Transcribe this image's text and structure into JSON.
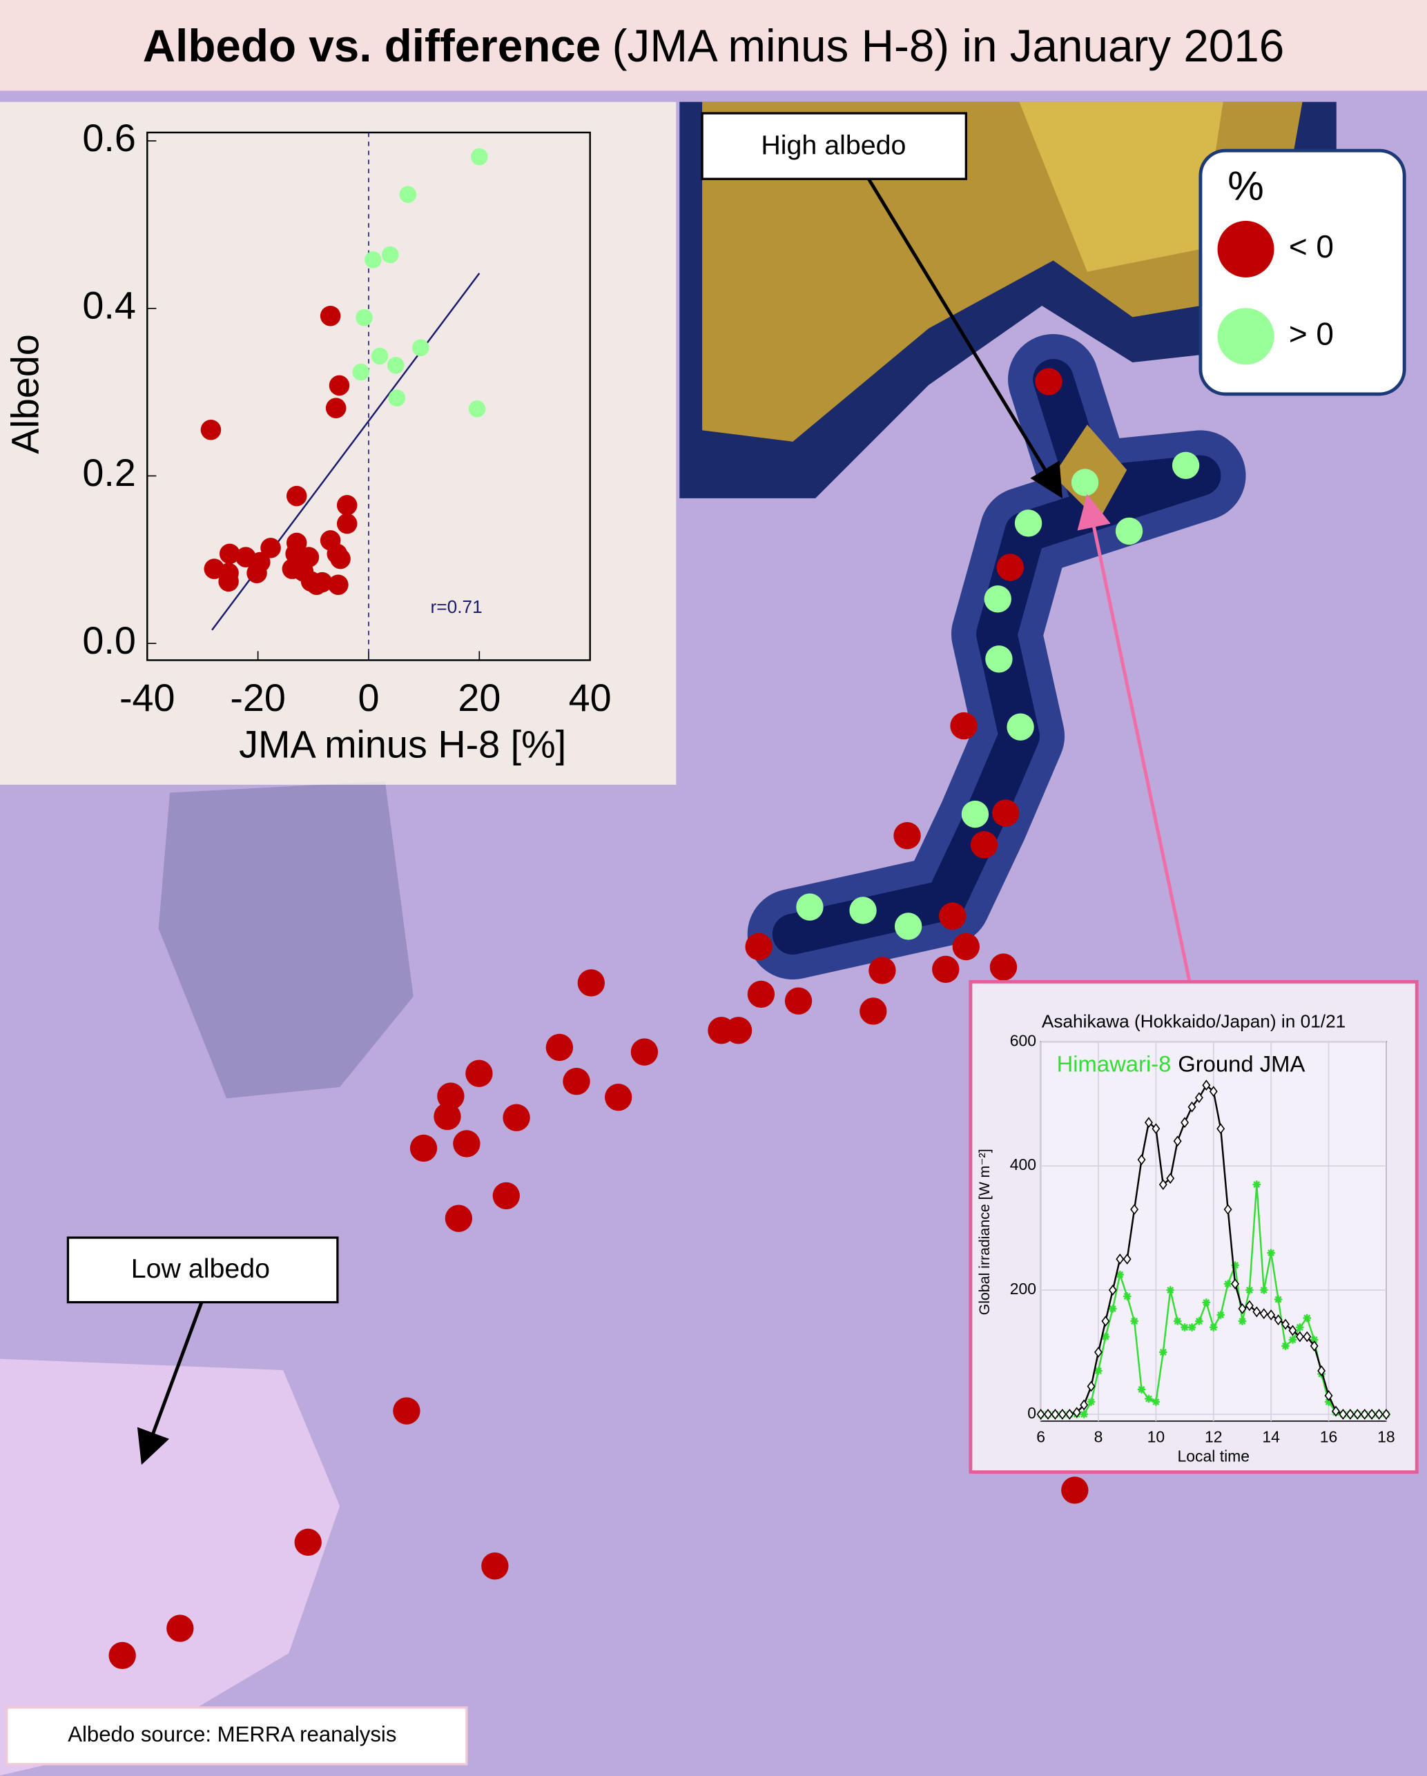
{
  "header": {
    "title_bold": "Albedo vs. difference",
    "title_rest": "(JMA minus H-8) in January 2016"
  },
  "annotations": {
    "high": "High albedo",
    "low": "Low albedo"
  },
  "legend": {
    "title": "%",
    "items": [
      {
        "label": "< 0",
        "color": "#c00000"
      },
      {
        "label": "> 0",
        "color": "#99ff99"
      }
    ]
  },
  "source": "Albedo  source: MERRA reanalysis",
  "chart_data": [
    {
      "type": "scatter",
      "xlabel": "JMA minus H-8 [%]",
      "ylabel": "Albedo",
      "xlim": [
        -40,
        40
      ],
      "ylim": [
        -0.02,
        0.61
      ],
      "xticks": [
        -40,
        -20,
        0,
        20,
        40
      ],
      "yticks": [
        {
          "value": 0,
          "label": "0.0"
        },
        0.2,
        0.4,
        0.6
      ],
      "vline": 0,
      "series": [
        {
          "color": "#c00000",
          "x": [
            -28.5,
            -6.9,
            -5.3,
            -5.9,
            -13.0,
            -3.9,
            -3.9,
            -27.9,
            -25.3,
            -25.1,
            -25.3,
            -22.2,
            -20.2,
            -19.6,
            -17.7,
            -13.0,
            -12.4,
            -13.2,
            -10.8,
            -13.8,
            -11.8,
            -9.4,
            -8.4,
            -6.9,
            -5.7,
            -5.1,
            -5.5,
            -10.4
          ],
          "values": [
            0.255,
            0.391,
            0.308,
            0.281,
            0.176,
            0.165,
            0.143,
            0.089,
            0.084,
            0.107,
            0.074,
            0.103,
            0.084,
            0.097,
            0.114,
            0.12,
            0.1,
            0.107,
            0.103,
            0.089,
            0.086,
            0.07,
            0.073,
            0.123,
            0.107,
            0.101,
            0.07,
            0.074
          ]
        },
        {
          "color": "#99ff99",
          "x": [
            20.0,
            7.1,
            0.8,
            3.9,
            -0.8,
            2.0,
            4.9,
            9.4,
            -1.4,
            5.1,
            19.6
          ],
          "values": [
            0.581,
            0.536,
            0.458,
            0.464,
            0.389,
            0.343,
            0.332,
            0.353,
            0.324,
            0.293,
            0.28
          ]
        }
      ],
      "fit": {
        "color": "#1a1a6e",
        "x": [
          -28.3,
          20.0
        ],
        "values": [
          0.016,
          0.442
        ]
      },
      "annotation": "r=0.71"
    },
    {
      "type": "line",
      "title": "Asahikawa (Hokkaido/Japan) in 01/21",
      "xlabel": "Local time",
      "ylabel": "Global irradiance [W m⁻²]",
      "xlim": [
        6,
        18
      ],
      "ylim": [
        -11,
        600
      ],
      "xticks": [
        6,
        8,
        10,
        12,
        14,
        16,
        18
      ],
      "yticks": [
        0,
        200,
        400,
        600
      ],
      "x": [
        6,
        6.25,
        6.5,
        6.75,
        7,
        7.25,
        7.5,
        7.75,
        8,
        8.25,
        8.5,
        8.75,
        9,
        9.25,
        9.5,
        9.75,
        10,
        10.25,
        10.5,
        10.75,
        11,
        11.25,
        11.5,
        11.75,
        12,
        12.25,
        12.5,
        12.75,
        13,
        13.25,
        13.5,
        13.75,
        14,
        14.25,
        14.5,
        14.75,
        15,
        15.25,
        15.5,
        15.75,
        16,
        16.25,
        16.5,
        16.75,
        17,
        17.25,
        17.5,
        17.75,
        18
      ],
      "series": [
        {
          "name": "Himawari-8",
          "color": "#33dd33",
          "values": [
            0,
            0,
            0,
            0,
            0,
            0,
            0,
            20,
            70,
            125,
            170,
            225,
            190,
            150,
            40,
            25,
            20,
            100,
            200,
            150,
            140,
            140,
            150,
            180,
            140,
            160,
            210,
            240,
            150,
            200,
            370,
            200,
            260,
            185,
            110,
            120,
            140,
            155,
            120,
            65,
            20,
            3,
            0,
            0,
            0,
            0,
            0,
            0,
            0
          ]
        },
        {
          "name": "Ground JMA",
          "color": "#000000",
          "values": [
            0,
            0,
            0,
            0,
            0,
            3,
            15,
            45,
            100,
            150,
            200,
            250,
            250,
            330,
            410,
            470,
            460,
            370,
            380,
            440,
            470,
            495,
            510,
            530,
            520,
            460,
            330,
            210,
            170,
            175,
            165,
            162,
            160,
            152,
            145,
            135,
            125,
            125,
            110,
            70,
            30,
            5,
            0,
            0,
            0,
            0,
            0,
            0,
            0
          ]
        }
      ]
    }
  ]
}
